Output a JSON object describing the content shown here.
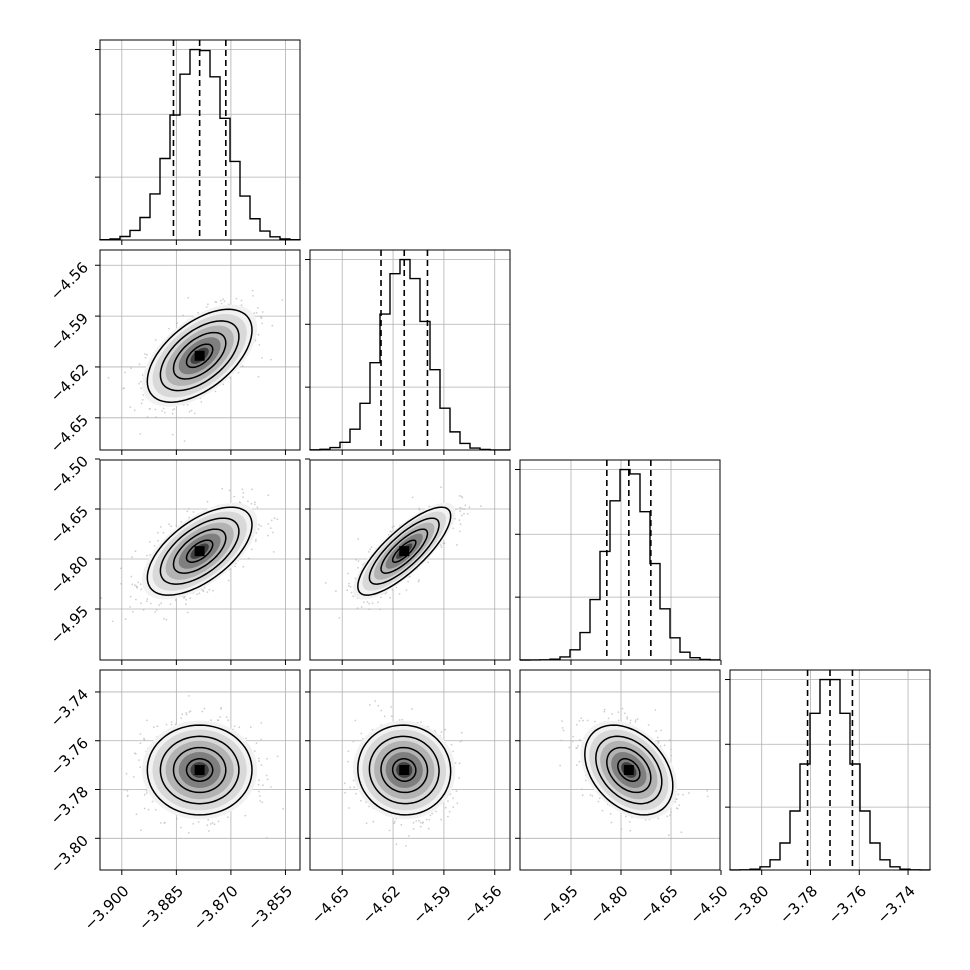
{
  "chart_data": {
    "type": "corner",
    "grid": true,
    "parameters": [
      {
        "range": [
          -3.906,
          -3.851
        ],
        "ticks": [
          -3.9,
          -3.885,
          -3.87,
          -3.855
        ],
        "tick_labels": [
          "−3.900",
          "−3.885",
          "−3.870",
          "−3.855"
        ],
        "quantiles": [
          -3.8858,
          -3.8786,
          -3.8714
        ],
        "mean": -3.8786,
        "sd": 0.0072
      },
      {
        "range": [
          -4.669,
          -4.551
        ],
        "ticks": [
          -4.65,
          -4.62,
          -4.59,
          -4.56
        ],
        "tick_labels": [
          "−4.65",
          "−4.62",
          "−4.59",
          "−4.56"
        ],
        "quantiles": [
          -4.6271,
          -4.6134,
          -4.5997
        ],
        "mean": -4.6134,
        "sd": 0.0137
      },
      {
        "range": [
          -5.103,
          -4.503
        ],
        "ticks": [
          -4.95,
          -4.8,
          -4.65,
          -4.5
        ],
        "tick_labels": [
          "−4.95",
          "−4.80",
          "−4.65",
          "−4.50"
        ],
        "quantiles": [
          -4.8425,
          -4.7765,
          -4.7105
        ],
        "mean": -4.7765,
        "sd": 0.066
      },
      {
        "range": [
          -3.813,
          -3.731
        ],
        "ticks": [
          -3.8,
          -3.78,
          -3.76,
          -3.74
        ],
        "tick_labels": [
          "−3.80",
          "−3.78",
          "−3.76",
          "−3.74"
        ],
        "quantiles": [
          -3.7812,
          -3.772,
          -3.7628
        ],
        "mean": -3.772,
        "sd": 0.0092
      }
    ],
    "correlations": {
      "1-0": 0.55,
      "2-0": 0.6,
      "2-1": 0.8,
      "3-0": 0.0,
      "3-1": -0.03,
      "3-2": -0.35
    },
    "contour_levels": [
      0.5,
      1.0,
      1.5,
      2.0
    ],
    "histogram_bins": 20,
    "scatter_color": "#bbbbbb",
    "line_color": "#000000"
  }
}
